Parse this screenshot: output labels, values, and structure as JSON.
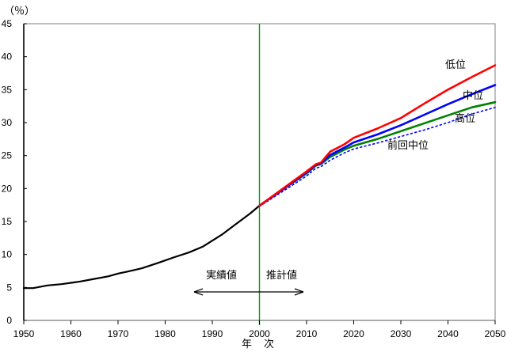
{
  "chart_data": {
    "type": "line",
    "title": "",
    "y_unit_label": "（％）",
    "x_axis_label": "年　次",
    "xlim": [
      1950,
      2050
    ],
    "ylim": [
      0,
      45
    ],
    "grid": false,
    "legend_position": "inline-labels",
    "x_ticks": [
      "1950",
      "1960",
      "1970",
      "1980",
      "1990",
      "2000",
      "2010",
      "2020",
      "2030",
      "2040",
      "2050"
    ],
    "y_ticks": [
      "0",
      "5",
      "10",
      "15",
      "20",
      "25",
      "30",
      "35",
      "40",
      "45"
    ],
    "divider": {
      "year": 2000,
      "color": "#00a000"
    },
    "annotations": {
      "actual_label": "実績値",
      "projected_label": "推計値"
    },
    "series": [
      {
        "name": "実績値",
        "color": "#000000",
        "style": "solid",
        "width": 2.2,
        "x": [
          1950,
          1952,
          1955,
          1958,
          1960,
          1962,
          1965,
          1968,
          1970,
          1972,
          1975,
          1978,
          1980,
          1982,
          1985,
          1988,
          1990,
          1992,
          1995,
          1998,
          2000
        ],
        "values": [
          4.9,
          4.9,
          5.3,
          5.5,
          5.7,
          5.9,
          6.3,
          6.7,
          7.1,
          7.4,
          7.9,
          8.6,
          9.1,
          9.6,
          10.3,
          11.2,
          12.1,
          13.0,
          14.6,
          16.2,
          17.4
        ]
      },
      {
        "name": "前回中位",
        "color": "#0000ff",
        "style": "dotted",
        "width": 1.6,
        "x": [
          2000,
          2005,
          2010,
          2012,
          2013,
          2015,
          2018,
          2020,
          2025,
          2030,
          2035,
          2040,
          2045,
          2050
        ],
        "values": [
          17.3,
          19.6,
          21.9,
          23.1,
          23.3,
          24.3,
          25.4,
          26.0,
          26.9,
          27.9,
          28.9,
          30.0,
          31.3,
          32.3
        ]
      },
      {
        "name": "高位",
        "color": "#008000",
        "style": "solid",
        "width": 2.6,
        "x": [
          2000,
          2005,
          2010,
          2012,
          2013,
          2015,
          2018,
          2020,
          2025,
          2030,
          2035,
          2040,
          2045,
          2050
        ],
        "values": [
          17.4,
          19.9,
          22.3,
          23.5,
          23.7,
          24.8,
          25.9,
          26.5,
          27.5,
          28.7,
          29.9,
          31.1,
          32.3,
          33.1
        ]
      },
      {
        "name": "中位",
        "color": "#0000ff",
        "style": "solid",
        "width": 2.6,
        "x": [
          2000,
          2005,
          2010,
          2012,
          2013,
          2015,
          2018,
          2020,
          2025,
          2030,
          2035,
          2040,
          2045,
          2050
        ],
        "values": [
          17.4,
          19.9,
          22.4,
          23.6,
          23.8,
          25.1,
          26.2,
          27.0,
          28.2,
          29.6,
          31.2,
          32.8,
          34.3,
          35.7
        ]
      },
      {
        "name": "低位",
        "color": "#ff0000",
        "style": "solid",
        "width": 2.6,
        "x": [
          2000,
          2005,
          2010,
          2012,
          2013,
          2015,
          2018,
          2020,
          2025,
          2030,
          2035,
          2040,
          2045,
          2050
        ],
        "values": [
          17.4,
          20.0,
          22.6,
          23.7,
          23.9,
          25.6,
          26.7,
          27.7,
          29.1,
          30.7,
          32.9,
          35.0,
          36.9,
          38.7
        ]
      }
    ]
  }
}
